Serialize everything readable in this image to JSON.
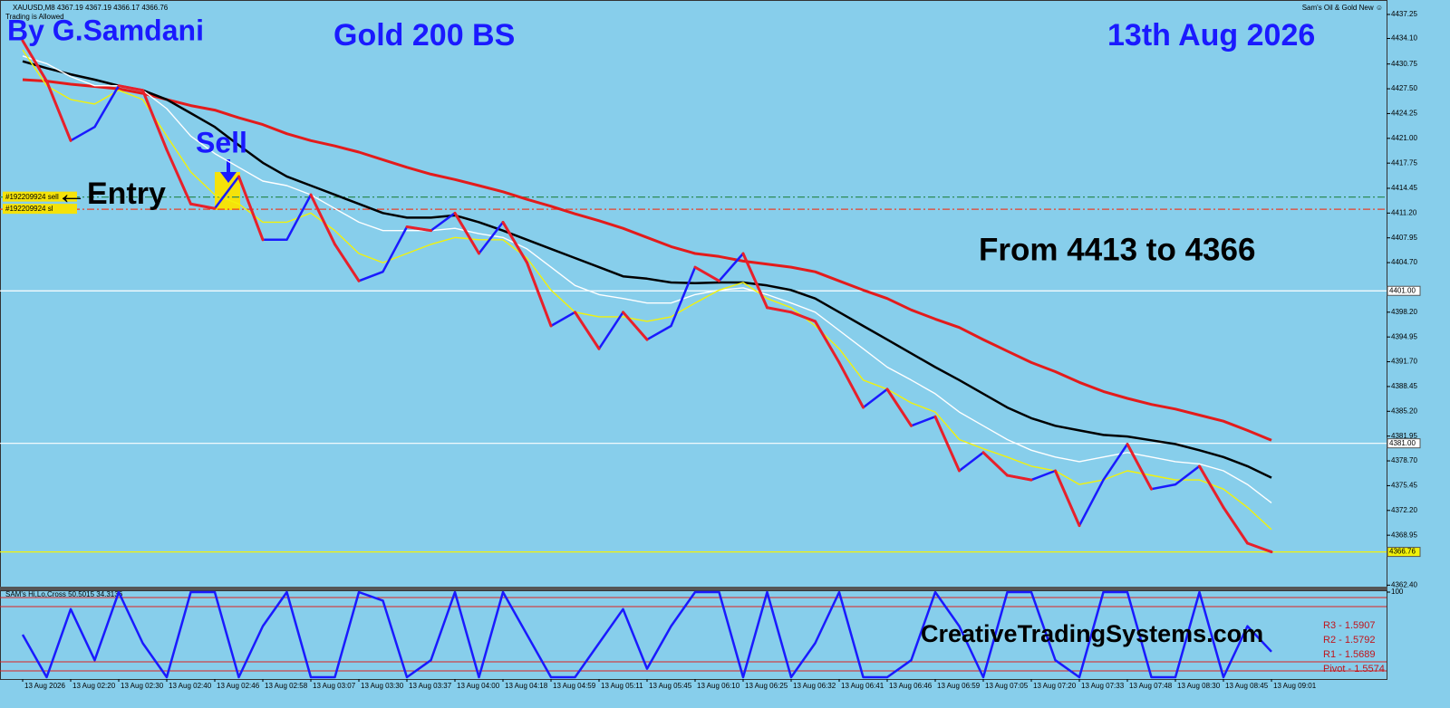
{
  "chart_data": [
    {
      "type": "line",
      "annotations": {
        "symbol": "XAUUSD,M8  4367.19 4367.19 4366.17 4366.76",
        "status": "Trading is Allowed",
        "expert": "Sam's Oil & Gold New ☺",
        "author": "By G.Samdani",
        "title": "Gold 200 BS",
        "date": "13th Aug 2026",
        "signal": "Sell",
        "entry": "←Entry",
        "note": "From 4413 to 4366",
        "watermark": "CreativeTradingSystems.com"
      },
      "categories": [
        "13 Aug 2026",
        null,
        "13 Aug 02:20",
        null,
        "13 Aug 02:30",
        null,
        "13 Aug 02:40",
        null,
        "13 Aug 02:46",
        null,
        "13 Aug 02:58",
        null,
        "13 Aug 03:07",
        null,
        "13 Aug 03:30",
        null,
        "13 Aug 03:37",
        null,
        "13 Aug 04:00",
        null,
        "13 Aug 04:18",
        null,
        "13 Aug 04:59",
        null,
        "13 Aug 05:11",
        null,
        "13 Aug 05:45",
        null,
        "13 Aug 06:10",
        null,
        "13 Aug 06:25",
        null,
        "13 Aug 06:32",
        null,
        "13 Aug 06:41",
        null,
        "13 Aug 06:46",
        null,
        "13 Aug 06:59",
        null,
        "13 Aug 07:05",
        null,
        "13 Aug 07:20",
        null,
        "13 Aug 07:33",
        null,
        "13 Aug 07:48",
        null,
        "13 Aug 08:30",
        null,
        "13 Aug 08:45",
        null,
        "13 Aug 09:01"
      ],
      "series": [
        {
          "color": "#1a1aff",
          "down_color": "#e8202a",
          "values": [
            4433.8,
            4428.5,
            4420.7,
            4422.5,
            4427.9,
            4427.3,
            4419.5,
            4412.4,
            4411.8,
            4416.0,
            4407.7,
            4407.7,
            4413.6,
            4407.1,
            4402.3,
            4403.5,
            4409.4,
            4408.9,
            4411.2,
            4405.9,
            4410.0,
            4404.7,
            4396.4,
            4398.2,
            4393.4,
            4398.2,
            4394.6,
            4396.4,
            4404.1,
            4402.3,
            4405.9,
            4398.8,
            4398.2,
            4397.0,
            4391.6,
            4385.7,
            4388.1,
            4383.3,
            4384.5,
            4377.4,
            4379.8,
            4376.8,
            4376.2,
            4377.4,
            4370.2,
            4376.2,
            4380.9,
            4375.0,
            4375.6,
            4378.0,
            4372.6,
            4367.9,
            4366.76
          ]
        },
        {
          "color": "#e31b1b",
          "values": [
            4428.7,
            4428.5,
            4428.1,
            4427.8,
            4427.5,
            4426.9,
            4426.1,
            4425.3,
            4424.7,
            4423.7,
            4422.8,
            4421.6,
            4420.7,
            4420.0,
            4419.2,
            4418.2,
            4417.2,
            4416.3,
            4415.6,
            4414.8,
            4414.0,
            4413.0,
            4412.1,
            4411.1,
            4410.2,
            4409.2,
            4408.0,
            4406.8,
            4405.9,
            4405.5,
            4404.9,
            4404.5,
            4404.1,
            4403.5,
            4402.3,
            4401.1,
            4400.0,
            4398.5,
            4397.3,
            4396.2,
            4394.6,
            4393.1,
            4391.6,
            4390.4,
            4389.0,
            4387.8,
            4386.9,
            4386.1,
            4385.5,
            4384.7,
            4383.9,
            4382.7,
            4381.4
          ]
        },
        {
          "color": "#000000",
          "values": [
            4431.1,
            4430.2,
            4429.4,
            4428.7,
            4427.9,
            4427.3,
            4426.1,
            4424.3,
            4422.5,
            4420.1,
            4417.8,
            4416.0,
            4414.8,
            4413.6,
            4412.4,
            4411.2,
            4410.6,
            4410.6,
            4410.9,
            4410.0,
            4408.9,
            4407.7,
            4406.5,
            4405.3,
            4404.1,
            4402.9,
            4402.6,
            4402.1,
            4402.0,
            4402.1,
            4402.1,
            4401.7,
            4401.1,
            4400.0,
            4398.2,
            4396.4,
            4394.6,
            4392.8,
            4391.0,
            4389.3,
            4387.5,
            4385.7,
            4384.3,
            4383.3,
            4382.7,
            4382.1,
            4381.9,
            4381.4,
            4380.9,
            4380.1,
            4379.2,
            4378.0,
            4376.5
          ]
        },
        {
          "color": "#ffffff",
          "values": [
            4431.8,
            4430.8,
            4429.1,
            4427.9,
            4427.9,
            4427.3,
            4424.9,
            4421.3,
            4419.0,
            4417.2,
            4415.4,
            4414.8,
            4413.6,
            4411.8,
            4410.0,
            4408.9,
            4408.9,
            4408.9,
            4409.2,
            4408.5,
            4408.0,
            4406.5,
            4404.1,
            4401.7,
            4400.5,
            4400.0,
            4399.4,
            4399.4,
            4400.5,
            4401.1,
            4401.4,
            4400.5,
            4399.4,
            4398.2,
            4395.8,
            4393.4,
            4391.0,
            4389.3,
            4387.5,
            4385.1,
            4383.3,
            4381.5,
            4380.1,
            4379.2,
            4378.6,
            4379.2,
            4379.8,
            4379.2,
            4378.6,
            4378.3,
            4377.4,
            4375.6,
            4373.2
          ]
        },
        {
          "color": "#f2f20a",
          "values": [
            4432.6,
            4427.9,
            4426.1,
            4425.5,
            4427.3,
            4426.1,
            4421.3,
            4416.6,
            4413.6,
            4412.4,
            4410.0,
            4410.0,
            4411.2,
            4408.9,
            4405.9,
            4404.7,
            4405.9,
            4407.1,
            4408.0,
            4407.7,
            4407.7,
            4405.3,
            4401.1,
            4398.2,
            4397.6,
            4397.6,
            4397.0,
            4397.6,
            4399.4,
            4401.1,
            4402.1,
            4400.0,
            4398.8,
            4396.4,
            4393.4,
            4389.3,
            4388.1,
            4386.3,
            4385.1,
            4381.5,
            4380.3,
            4379.2,
            4378.0,
            4377.4,
            4375.6,
            4376.2,
            4377.4,
            4376.8,
            4376.2,
            4376.2,
            4375.0,
            4372.6,
            4369.7
          ]
        }
      ],
      "levels": [
        {
          "value": 4413.3,
          "color": "#2e8b57",
          "style": "dashdot",
          "trade": "#192209924 sell"
        },
        {
          "value": 4411.7,
          "color": "#e8402a",
          "style": "dashdot",
          "trade": "#192209924 sl"
        },
        {
          "value": 4401,
          "color": "#ffffff",
          "style": "solid",
          "label": "4401.00"
        },
        {
          "value": 4381,
          "color": "#ffffff",
          "style": "solid",
          "label": "4381.00"
        },
        {
          "value": 4366.76,
          "color": "#f2f20a",
          "style": "solid",
          "label": "4366.76"
        }
      ],
      "ylim": [
        4362.2,
        4438.55
      ],
      "yticks": [
        4437.25,
        {
          "value": 4434.1,
          "label": "4434.10"
        },
        4430.75,
        {
          "value": 4427.5,
          "label": "4427.50"
        },
        4424.25,
        {
          "value": 4421,
          "label": "4421.00"
        },
        4417.75,
        4414.45,
        {
          "value": 4411.2,
          "label": "4411.20"
        },
        4407.95,
        {
          "value": 4404.7,
          "label": "4404.70"
        },
        {
          "value": 4398.2,
          "label": "4398.20"
        },
        4394.95,
        {
          "value": 4391.7,
          "label": "4391.70"
        },
        4388.45,
        {
          "value": 4385.2,
          "label": "4385.20"
        },
        4381.95,
        {
          "value": 4378.7,
          "label": "4378.70"
        },
        4375.45,
        {
          "value": 4372.2,
          "label": "4372.20"
        },
        4368.95,
        {
          "value": 4362.4,
          "label": "4362.40"
        }
      ]
    },
    {
      "type": "line",
      "title": "SAM's Hi,Lo,Cross 50.5015 34.3136",
      "series": [
        {
          "color": "#1a1aff",
          "values": [
            50,
            0,
            80,
            20,
            100,
            40,
            0,
            100,
            100,
            0,
            60,
            100,
            0,
            0,
            100,
            90,
            0,
            20,
            100,
            0,
            100,
            50,
            0,
            0,
            40,
            80,
            10,
            60,
            100,
            100,
            0,
            100,
            0,
            40,
            100,
            0,
            0,
            20,
            100,
            60,
            0,
            100,
            100,
            20,
            0,
            100,
            100,
            0,
            0,
            100,
            0,
            60,
            30
          ]
        }
      ],
      "pivots": [
        "R3 - 1.5907",
        "R2 - 1.5792",
        "R1 - 1.5689",
        "Pivot - 1.5574"
      ],
      "ylim": [
        0,
        100
      ],
      "yticks": [
        100
      ]
    }
  ]
}
